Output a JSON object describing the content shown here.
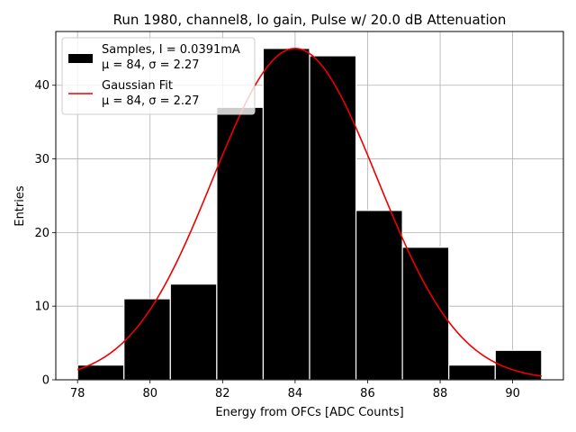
{
  "chart_data": {
    "type": "bar",
    "title": "Run 1980, channel8, lo gain, Pulse w/ 20.0 dB Attenuation",
    "xlabel": "Energy from OFCs [ADC Counts]",
    "ylabel": "Entries",
    "xlim": [
      77.4,
      91.4
    ],
    "ylim": [
      0,
      47.3
    ],
    "grid": true,
    "x_ticks": [
      78,
      80,
      82,
      84,
      86,
      88,
      90
    ],
    "y_ticks": [
      0,
      10,
      20,
      30,
      40
    ],
    "histogram": {
      "name": "Samples, I = 0.0391mA",
      "bin_edges": [
        78.0,
        79.28,
        80.56,
        81.84,
        83.12,
        84.4,
        85.68,
        86.96,
        88.24,
        89.52,
        90.8
      ],
      "counts": [
        2,
        11,
        13,
        37,
        45,
        44,
        23,
        18,
        2,
        4
      ],
      "color": "#000000",
      "edgecolor": "#ffffff"
    },
    "fit": {
      "name": "Gaussian Fit",
      "type": "gaussian",
      "mu": 84.0,
      "sigma": 2.27,
      "amplitude": 45.0,
      "x_range": [
        78.0,
        90.8
      ],
      "color": "#ee0000"
    },
    "legend": {
      "location": "upper-left",
      "entries": [
        {
          "label": "Samples, I = 0.0391mA",
          "stats": "μ = 84, σ = 2.27",
          "kind": "bar"
        },
        {
          "label": "Gaussian Fit",
          "stats": "μ = 84, σ = 2.27",
          "kind": "line"
        }
      ]
    }
  }
}
